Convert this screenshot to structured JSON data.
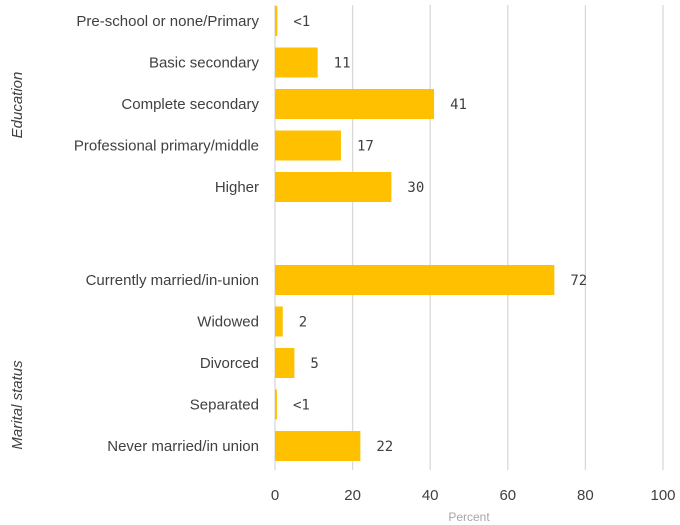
{
  "chart_data": {
    "type": "bar",
    "orientation": "horizontal",
    "xlabel": "Percent",
    "xlim": [
      0,
      100
    ],
    "xticks": [
      0,
      20,
      40,
      60,
      80,
      100
    ],
    "grid": true,
    "bar_color": "#FFC000",
    "groups": [
      {
        "name": "Education",
        "categories": [
          "Pre-school or none/Primary",
          "Basic secondary",
          "Complete secondary",
          "Professional primary/middle",
          "Higher"
        ],
        "values": [
          0.6,
          11,
          41,
          17,
          30
        ],
        "labels": [
          "<1",
          "11",
          "41",
          "17",
          "30"
        ]
      },
      {
        "name": "Marital status",
        "categories": [
          "Currently married/in-union",
          "Widowed",
          "Divorced",
          "Separated",
          "Never married/in union"
        ],
        "values": [
          72,
          2,
          5,
          0.5,
          22
        ],
        "labels": [
          "72",
          "2",
          "5",
          "<1",
          "22"
        ]
      }
    ]
  }
}
